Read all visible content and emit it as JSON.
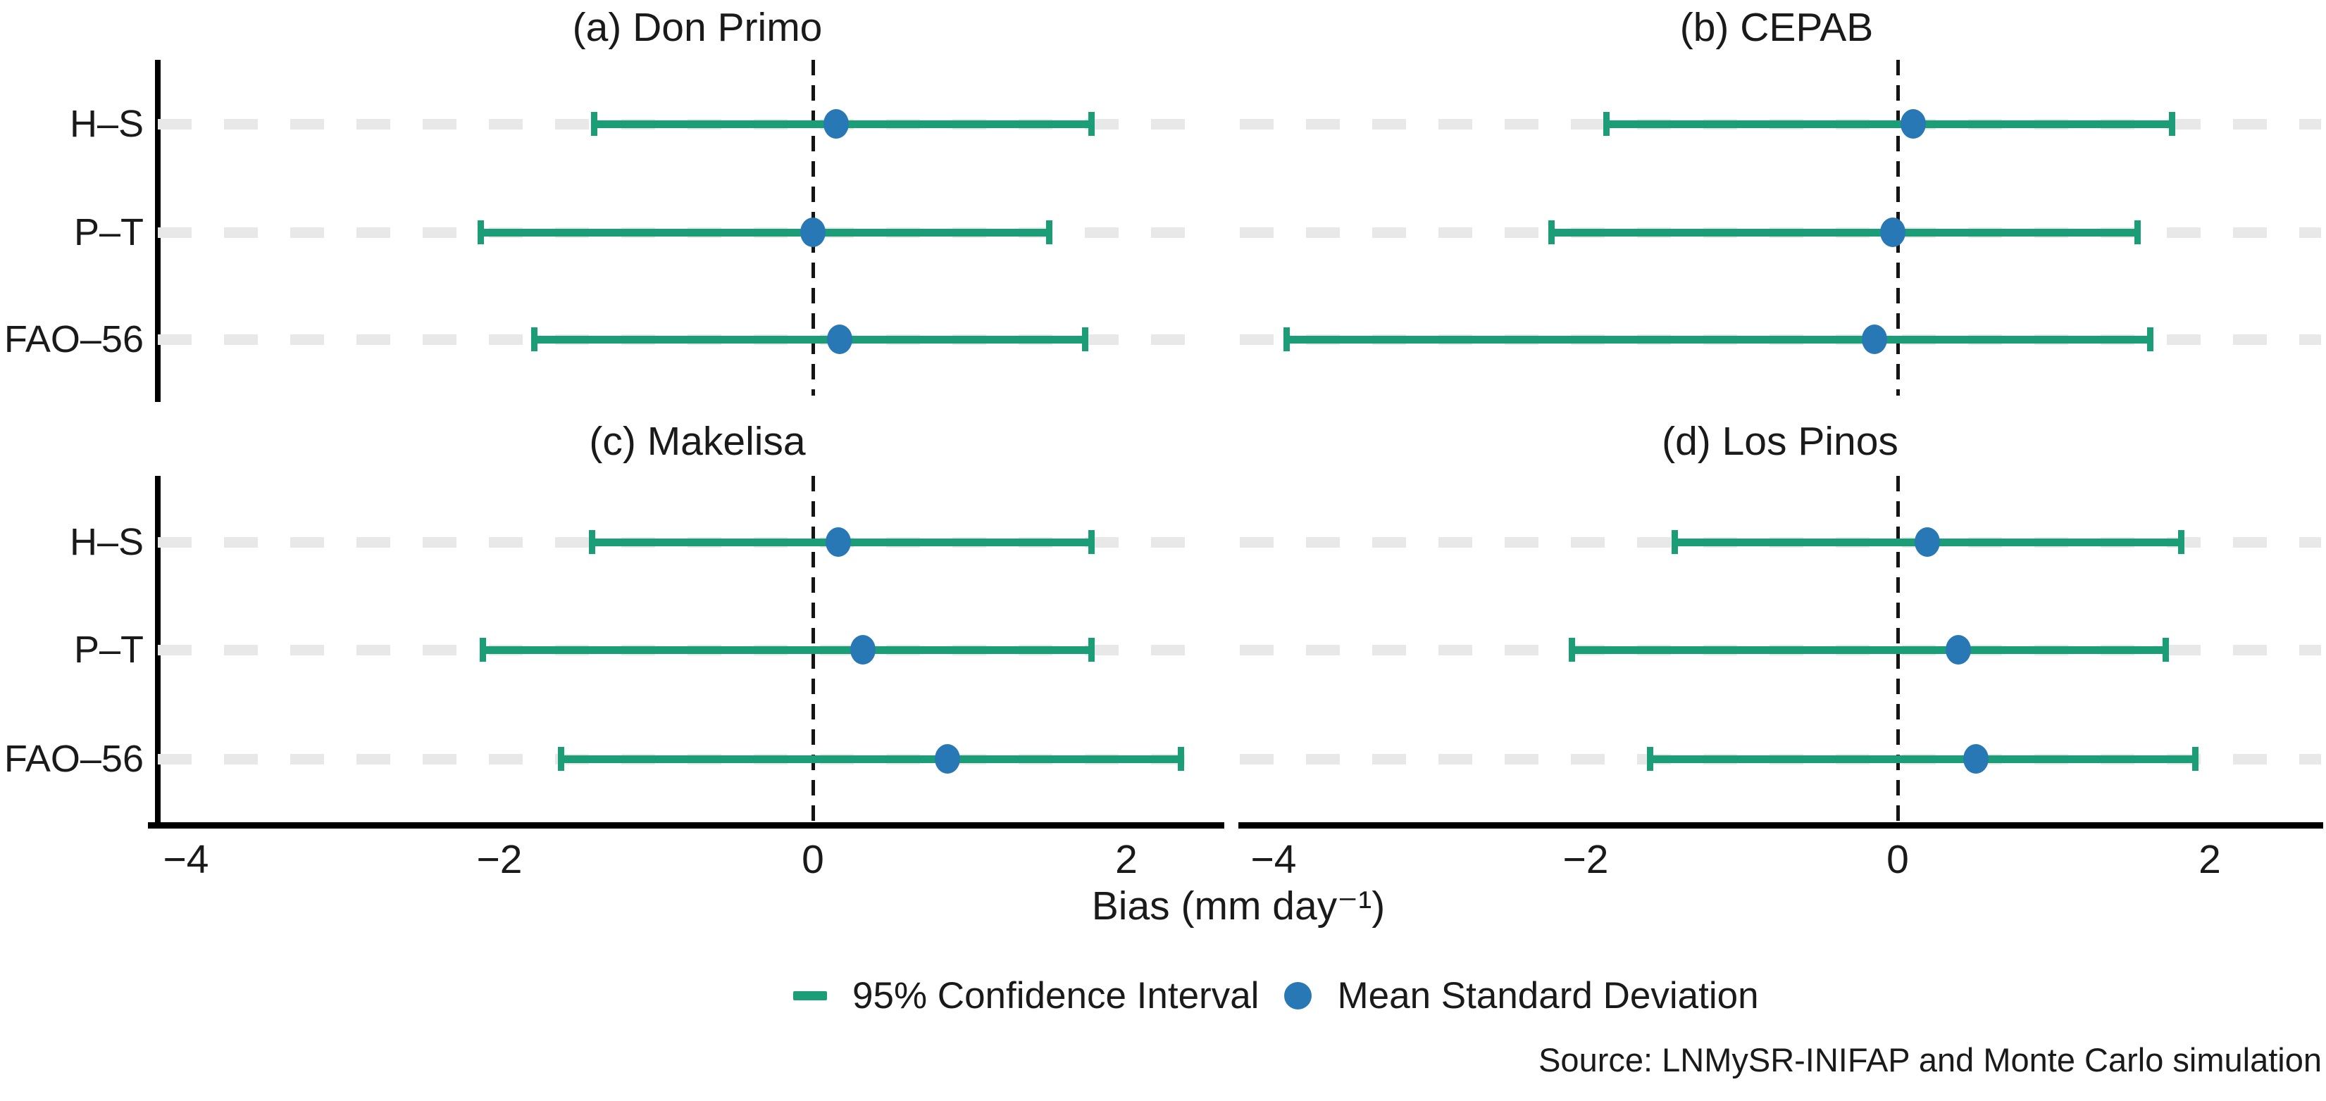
{
  "figure": {
    "xlabel": "Bias (mm day⁻¹)",
    "legend_ci": "95% Confidence Interval",
    "legend_mean": "Mean Standard Deviation",
    "source": "Source: LNMySR-INIFAP and Monte Carlo simulation",
    "colors": {
      "ci_green": "#1b9e77",
      "mean_blue": "#2878b5",
      "grid_gray": "#e8e8e8",
      "axis_black": "#000000",
      "zero_line": "#141414"
    }
  },
  "chart_data": {
    "type": "errorbar-dot",
    "categories": [
      "H–S",
      "P–T",
      "FAO–56"
    ],
    "xticks": [
      -4,
      -2,
      0,
      2
    ],
    "xtick_labels": [
      "−4",
      "−2",
      "0",
      "2"
    ],
    "xlim_left_panels": [
      -4.2,
      2.5
    ],
    "xlim_right_panels": [
      -4.2,
      2.7
    ],
    "grid": "horizontal-dashed",
    "zero_reference_line": 0,
    "legend_position": "bottom-center",
    "panels": [
      {
        "id": "a",
        "title": "(a) Don Primo",
        "rows": [
          {
            "method": "H–S",
            "mean": 0.15,
            "ci": [
              -1.4,
              1.78
            ]
          },
          {
            "method": "P–T",
            "mean": 0.0,
            "ci": [
              -2.12,
              1.51
            ]
          },
          {
            "method": "FAO–56",
            "mean": 0.17,
            "ci": [
              -1.78,
              1.74
            ]
          }
        ]
      },
      {
        "id": "b",
        "title": "(b) CEPAB",
        "rows": [
          {
            "method": "H–S",
            "mean": 0.1,
            "ci": [
              -1.87,
              1.76
            ]
          },
          {
            "method": "P–T",
            "mean": -0.03,
            "ci": [
              -2.22,
              1.54
            ]
          },
          {
            "method": "FAO–56",
            "mean": -0.15,
            "ci": [
              -3.92,
              1.62
            ]
          }
        ]
      },
      {
        "id": "c",
        "title": "(c) Makelisa",
        "rows": [
          {
            "method": "H–S",
            "mean": 0.16,
            "ci": [
              -1.41,
              1.78
            ]
          },
          {
            "method": "P–T",
            "mean": 0.32,
            "ci": [
              -2.11,
              1.78
            ]
          },
          {
            "method": "FAO–56",
            "mean": 0.86,
            "ci": [
              -1.61,
              2.35
            ]
          }
        ]
      },
      {
        "id": "d",
        "title": "(d) Los Pinos",
        "rows": [
          {
            "method": "H–S",
            "mean": 0.19,
            "ci": [
              -1.43,
              1.82
            ]
          },
          {
            "method": "P–T",
            "mean": 0.39,
            "ci": [
              -2.09,
              1.72
            ]
          },
          {
            "method": "FAO–56",
            "mean": 0.5,
            "ci": [
              -1.59,
              1.91
            ]
          }
        ]
      }
    ]
  }
}
